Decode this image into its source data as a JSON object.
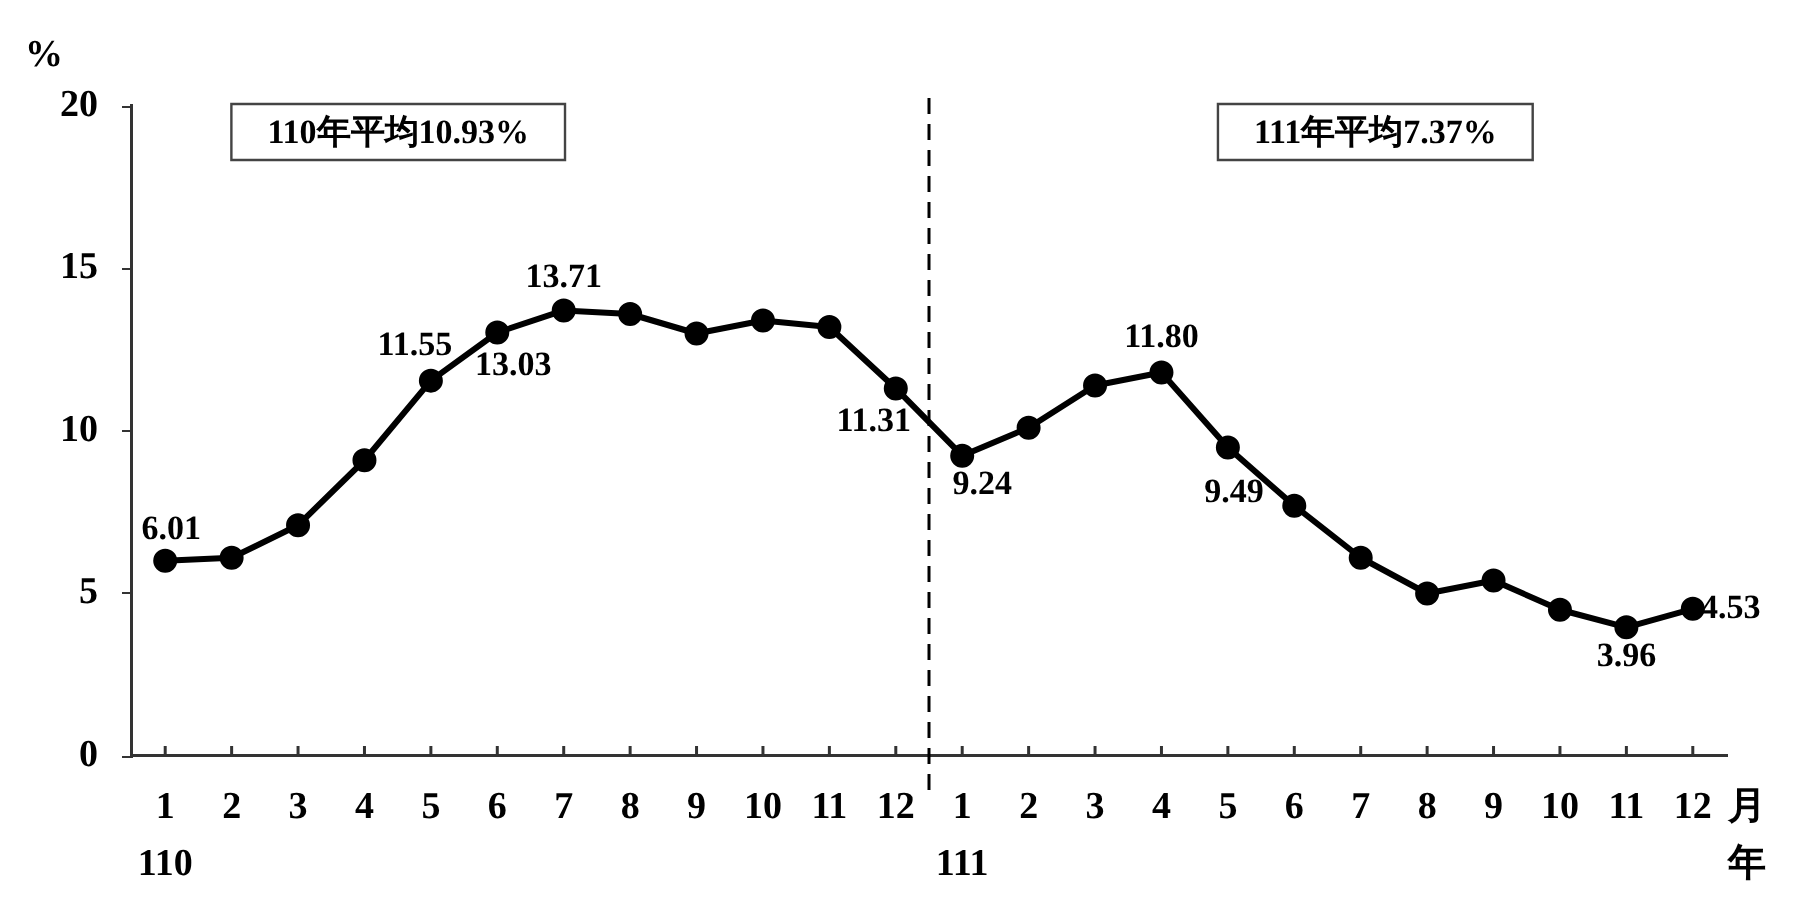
{
  "chart_data": {
    "type": "line",
    "ylabel": "%",
    "xlabel": "月年",
    "categories": [
      "1\n110",
      "2",
      "3",
      "4",
      "5",
      "6",
      "7",
      "8",
      "9",
      "10",
      "11",
      "12",
      "1\n111",
      "2",
      "3",
      "4",
      "5",
      "6",
      "7",
      "8",
      "9",
      "10",
      "11",
      "12"
    ],
    "ylim": [
      0,
      20
    ],
    "yticks": [
      0,
      5,
      10,
      15,
      20
    ],
    "series": [
      {
        "color": "#000000",
        "values": [
          6.01,
          6.1,
          7.1,
          9.1,
          11.55,
          13.03,
          13.71,
          13.6,
          13.0,
          13.4,
          13.2,
          11.31,
          9.24,
          10.1,
          11.4,
          11.8,
          9.49,
          7.7,
          6.1,
          5.0,
          5.4,
          4.5,
          3.96,
          4.53
        ],
        "value_labels": [
          "6.01",
          null,
          null,
          null,
          "11.55",
          "13.03",
          "13.71",
          null,
          null,
          null,
          null,
          "11.31",
          "9.24",
          null,
          null,
          "11.80",
          "9.49",
          null,
          null,
          null,
          null,
          null,
          "3.96",
          "4.53"
        ]
      }
    ],
    "annotations": [
      "110年平均10.93%",
      "111年平均7.37%"
    ],
    "marker": "circle",
    "line_style": "solid",
    "grid": false,
    "legend": false
  }
}
